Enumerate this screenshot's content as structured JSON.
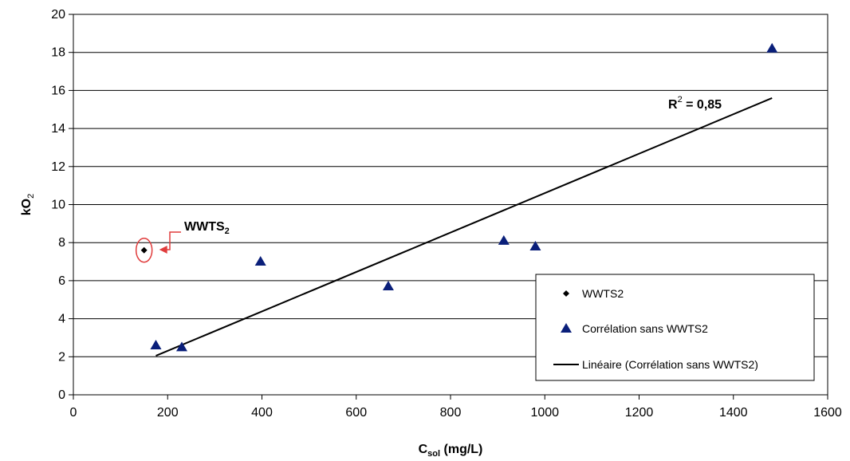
{
  "chart_data": {
    "type": "scatter",
    "xlabel": "C",
    "xlabel_sub": "sol",
    "xlabel_unit": " (mg/L)",
    "ylabel": "kO",
    "ylabel_sub": "2",
    "xlim": [
      0,
      1600
    ],
    "ylim": [
      0,
      20
    ],
    "x_ticks": [
      "0",
      "200",
      "400",
      "600",
      "800",
      "1000",
      "1200",
      "1400",
      "1600"
    ],
    "y_ticks": [
      "0",
      "2",
      "4",
      "6",
      "8",
      "10",
      "12",
      "14",
      "16",
      "18",
      "20"
    ],
    "grid": "horizontal",
    "series": [
      {
        "name": "WWTS2",
        "marker": "diamond",
        "color": "#000000",
        "points": [
          [
            150,
            7.6
          ]
        ]
      },
      {
        "name": "Corrélation sans WWTS2",
        "marker": "triangle",
        "color": "#0A1F7A",
        "points": [
          [
            175,
            2.6
          ],
          [
            230,
            2.5
          ],
          [
            397,
            7.0
          ],
          [
            668,
            5.7
          ],
          [
            913,
            8.1
          ],
          [
            980,
            7.8
          ],
          [
            1482,
            18.2
          ]
        ]
      },
      {
        "name": "Linéaire (Corrélation sans WWTS2)",
        "marker": "line",
        "color": "#000000",
        "points": [
          [
            175,
            2.05
          ],
          [
            1482,
            15.6
          ]
        ]
      }
    ],
    "annotations": {
      "wwts_label": "WWTS",
      "wwts_sub": "2",
      "r2_prefix": "R",
      "r2_sup": "2",
      "r2_value": " = 0,85",
      "highlight_color": "#E03C3C"
    },
    "legend": {
      "position": "bottom-right",
      "entries": [
        "WWTS2",
        "Corrélation sans WWTS2",
        "Linéaire (Corrélation sans WWTS2)"
      ]
    }
  }
}
